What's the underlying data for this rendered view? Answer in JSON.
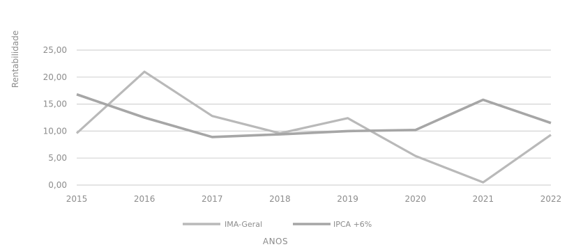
{
  "chart_data": {
    "type": "line",
    "title": "",
    "xlabel": "ANOS",
    "ylabel": "Rentabilidade",
    "categories": [
      "2015",
      "2016",
      "2017",
      "2018",
      "2019",
      "2020",
      "2021",
      "2022"
    ],
    "yticks": [
      "0,00",
      "5,00",
      "10,00",
      "15,00",
      "20,00",
      "25,00"
    ],
    "ylim": [
      0,
      25
    ],
    "grid": true,
    "legend_position": "bottom",
    "series": [
      {
        "name": "IMA-Geral",
        "values": [
          9.6,
          21.0,
          12.8,
          9.6,
          12.4,
          5.4,
          0.5,
          9.3
        ]
      },
      {
        "name": "IPCA +6%",
        "values": [
          16.8,
          12.5,
          8.9,
          9.4,
          10.0,
          10.2,
          15.8,
          11.5
        ]
      }
    ],
    "colors": {
      "IMA-Geral": "#b9b9b9",
      "IPCA +6%": "#a6a6a6",
      "grid": "#d4d4d4",
      "text": "#8c8c8c"
    }
  }
}
